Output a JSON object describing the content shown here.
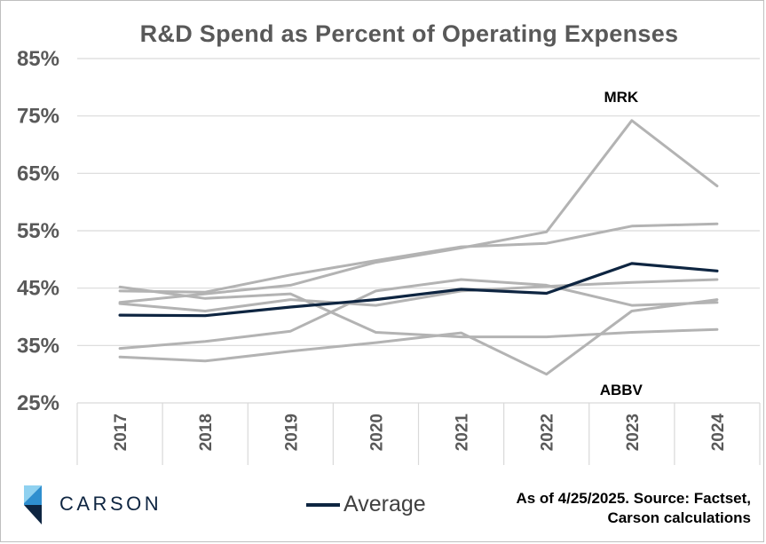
{
  "chart_data": {
    "type": "line",
    "title": "R&D Spend as Percent of Operating Expenses",
    "xlabel": "",
    "ylabel": "",
    "x": [
      "2017",
      "2018",
      "2019",
      "2020",
      "2021",
      "2022",
      "2023",
      "2024"
    ],
    "ylim": [
      25,
      85
    ],
    "yticks": [
      25,
      35,
      45,
      55,
      65,
      75,
      85
    ],
    "ytick_labels": [
      "25%",
      "35%",
      "45%",
      "55%",
      "65%",
      "75%",
      "85%"
    ],
    "grid": "horizontal",
    "series": [
      {
        "values": [
          42.5,
          44,
          45.5,
          49.5,
          52,
          54.8,
          74.2,
          62.8
        ],
        "color": "#b3b3b3",
        "label": "MRK"
      },
      {
        "values": [
          34.5,
          35.7,
          37.5,
          44.5,
          46.5,
          45.5,
          42,
          42.5
        ],
        "color": "#b3b3b3"
      },
      {
        "values": [
          33,
          32.3,
          34,
          35.5,
          37.2,
          30,
          41,
          43
        ],
        "color": "#b3b3b3",
        "label": "ABBV"
      },
      {
        "values": [
          45.2,
          43.2,
          44,
          37.3,
          36.5,
          36.5,
          37.3,
          37.8
        ],
        "color": "#b3b3b3"
      },
      {
        "values": [
          44.5,
          44.3,
          47.3,
          49.8,
          52.2,
          52.8,
          55.8,
          56.2
        ],
        "color": "#b3b3b3"
      },
      {
        "values": [
          42.3,
          41,
          43,
          42,
          44.5,
          45.3,
          46,
          46.5
        ],
        "color": "#b3b3b3"
      },
      {
        "name": "Average",
        "values": [
          40.3,
          40.2,
          41.7,
          43,
          44.8,
          44.1,
          49.3,
          48
        ],
        "color": "#0e2541"
      }
    ],
    "annotations": [
      {
        "text": "MRK",
        "x": "2023",
        "y": 78.5
      },
      {
        "text": "ABBV",
        "x": "2023",
        "y": 27.5
      }
    ],
    "legend": {
      "position": "bottom",
      "entries": [
        "Average"
      ]
    }
  },
  "footer": {
    "logo_text": "CARSON",
    "source_line1": "As of 4/25/2025. Source: Factset,",
    "source_line2": "Carson calculations"
  },
  "colors": {
    "grid": "#d9d9d9",
    "peer_line": "#b3b3b3",
    "average_line": "#0e2541",
    "axis_text": "#595959",
    "logo_light_blue": "#8fd1f0",
    "logo_mid_blue": "#2f8fcf",
    "logo_dark_blue": "#0e2541"
  }
}
